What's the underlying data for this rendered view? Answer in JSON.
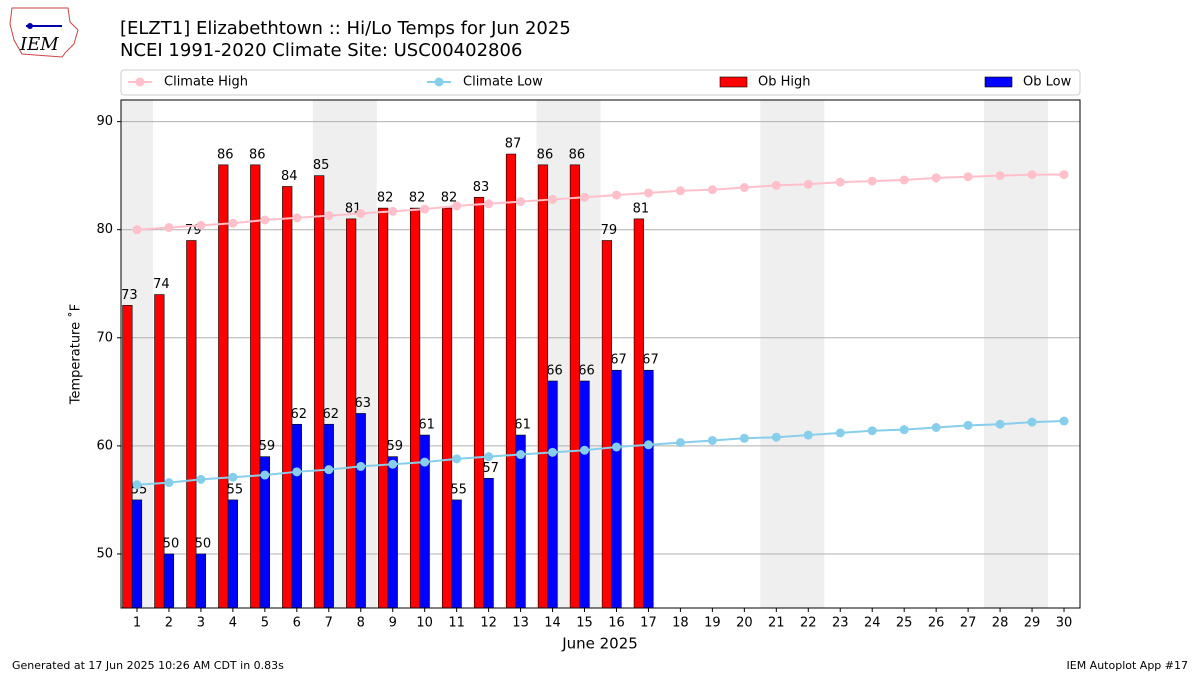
{
  "chart_data": {
    "type": "bar",
    "title": "[ELZT1] Elizabethtown :: Hi/Lo Temps for Jun 2025",
    "subtitle": "NCEI 1991-2020 Climate Site: USC00402806",
    "logo_text": "IEM",
    "x_label": "June 2025",
    "y_label": "Temperature ˚F",
    "footer_left": "Generated at 17 Jun 2025 10:26 AM CDT in 0.83s",
    "footer_right": "IEM Autoplot App #17",
    "x": [
      1,
      2,
      3,
      4,
      5,
      6,
      7,
      8,
      9,
      10,
      11,
      12,
      13,
      14,
      15,
      16,
      17,
      18,
      19,
      20,
      21,
      22,
      23,
      24,
      25,
      26,
      27,
      28,
      29,
      30
    ],
    "xlim": [
      0.5,
      30.5
    ],
    "xticks": [
      1,
      2,
      3,
      4,
      5,
      6,
      7,
      8,
      9,
      10,
      11,
      12,
      13,
      14,
      15,
      16,
      17,
      18,
      19,
      20,
      21,
      22,
      23,
      24,
      25,
      26,
      27,
      28,
      29,
      30
    ],
    "ylim": [
      45,
      92
    ],
    "yticks": [
      50,
      60,
      70,
      80,
      90
    ],
    "grid": true,
    "series": [
      {
        "name": "Climate High",
        "type": "line",
        "color": "#ffc0cb",
        "values": [
          80.0,
          80.2,
          80.4,
          80.6,
          80.9,
          81.1,
          81.3,
          81.5,
          81.7,
          81.9,
          82.2,
          82.4,
          82.6,
          82.8,
          83.0,
          83.2,
          83.4,
          83.6,
          83.7,
          83.9,
          84.1,
          84.2,
          84.4,
          84.5,
          84.6,
          84.8,
          84.9,
          85.0,
          85.1,
          85.1
        ]
      },
      {
        "name": "Climate Low",
        "type": "line",
        "color": "#87ceeb",
        "values": [
          56.4,
          56.6,
          56.9,
          57.1,
          57.3,
          57.6,
          57.8,
          58.1,
          58.3,
          58.5,
          58.8,
          59.0,
          59.2,
          59.4,
          59.6,
          59.9,
          60.1,
          60.3,
          60.5,
          60.7,
          60.8,
          61.0,
          61.2,
          61.4,
          61.5,
          61.7,
          61.9,
          62.0,
          62.2,
          62.3
        ]
      },
      {
        "name": "Ob High",
        "type": "bar",
        "color": "#ff0000",
        "values": [
          73,
          74,
          79,
          86,
          86,
          84,
          85,
          81,
          82,
          82,
          82,
          83,
          87,
          86,
          86,
          79,
          81,
          null,
          null,
          null,
          null,
          null,
          null,
          null,
          null,
          null,
          null,
          null,
          null,
          null
        ]
      },
      {
        "name": "Ob Low",
        "type": "bar",
        "color": "#0000ff",
        "values": [
          55,
          50,
          50,
          55,
          59,
          62,
          62,
          63,
          59,
          61,
          55,
          57,
          61,
          66,
          66,
          67,
          67,
          null,
          null,
          null,
          null,
          null,
          null,
          null,
          null,
          null,
          null,
          null,
          null,
          null
        ]
      }
    ]
  }
}
